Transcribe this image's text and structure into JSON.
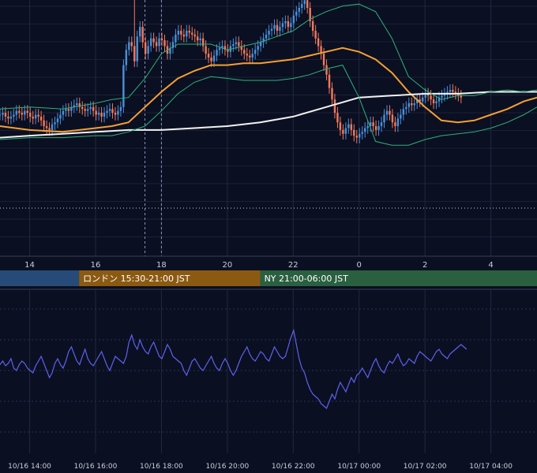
{
  "chart_data": [
    {
      "type": "candlestick",
      "panel": "price",
      "grid": true,
      "x_tick_labels": [
        "14",
        "16",
        "18",
        "20",
        "22",
        "0",
        "2",
        "4"
      ],
      "x_ticks_hours": [
        14,
        16,
        18,
        20,
        22,
        24,
        26,
        28
      ],
      "xlim_hours": [
        13.1,
        29.4
      ],
      "ylim": [
        0,
        100
      ],
      "vertical_markers_hours": [
        17.5,
        18.0
      ],
      "reference_line_level": 22,
      "series": [
        {
          "kind": "moving-average",
          "color": "#f5a033",
          "x": [
            13.1,
            14.0,
            15.0,
            16.0,
            16.5,
            17.0,
            17.5,
            18.0,
            18.5,
            19.0,
            19.5,
            20.0,
            20.5,
            21.0,
            21.5,
            22.0,
            22.5,
            23.0,
            23.5,
            24.0,
            24.5,
            25.0,
            25.5,
            26.0,
            26.5,
            27.0,
            27.5,
            28.0,
            28.5,
            29.0,
            29.4
          ],
          "y": [
            38,
            36,
            35,
            37,
            38,
            40,
            48,
            56,
            63,
            67,
            70,
            70,
            71,
            71,
            72,
            73,
            75,
            77,
            79,
            77,
            73,
            66,
            56,
            48,
            41,
            40,
            41,
            44,
            47,
            51,
            53
          ]
        },
        {
          "kind": "moving-average",
          "color": "#f2f2f2",
          "x": [
            13.1,
            14.0,
            15.0,
            16.0,
            17.0,
            18.0,
            19.0,
            20.0,
            21.0,
            22.0,
            23.0,
            24.0,
            25.0,
            26.0,
            27.0,
            28.0,
            29.0,
            29.4
          ],
          "y": [
            32,
            33,
            34,
            35,
            36,
            36,
            37,
            38,
            40,
            43,
            48,
            53,
            54,
            55,
            55,
            56,
            56,
            56
          ]
        },
        {
          "kind": "band-upper",
          "color": "#2db37a",
          "x": [
            13.1,
            14.0,
            15.0,
            16.0,
            16.5,
            17.0,
            17.5,
            18.0,
            18.5,
            19.0,
            19.5,
            20.0,
            20.5,
            21.0,
            21.5,
            22.0,
            22.5,
            23.0,
            23.5,
            24.0,
            24.5,
            25.0,
            25.5,
            26.0,
            26.5,
            27.0,
            27.5,
            28.0,
            28.5,
            29.0,
            29.4
          ],
          "y": [
            47,
            48,
            47,
            50,
            52,
            53,
            63,
            76,
            81,
            81,
            81,
            78,
            80,
            82,
            85,
            88,
            94,
            98,
            101,
            102,
            98,
            84,
            64,
            57,
            52,
            54,
            54,
            56,
            57,
            56,
            57
          ]
        },
        {
          "kind": "band-lower",
          "color": "#2db37a",
          "x": [
            13.1,
            14.0,
            15.0,
            16.0,
            16.5,
            17.0,
            17.5,
            18.0,
            18.5,
            19.0,
            19.5,
            20.0,
            20.5,
            21.0,
            21.5,
            22.0,
            22.5,
            23.0,
            23.5,
            24.0,
            24.5,
            25.0,
            25.5,
            26.0,
            26.5,
            27.0,
            27.5,
            28.0,
            28.5,
            29.0,
            29.4
          ],
          "y": [
            31,
            32,
            32,
            33,
            33,
            35,
            38,
            46,
            55,
            61,
            64,
            63,
            62,
            62,
            62,
            63,
            65,
            68,
            70,
            53,
            30,
            28,
            28,
            31,
            33,
            34,
            35,
            37,
            40,
            44,
            48
          ]
        },
        {
          "kind": "candles",
          "up_color": "#4a90d9",
          "down_color": "#f07a5c",
          "start_hour": 13.1,
          "step_hours": 0.0833,
          "close": [
            44,
            45,
            43,
            42,
            43,
            44,
            46,
            45,
            44,
            46,
            45,
            43,
            42,
            44,
            43,
            41,
            38,
            37,
            36,
            39,
            40,
            42,
            44,
            46,
            47,
            46,
            48,
            49,
            50,
            48,
            47,
            46,
            47,
            48,
            46,
            44,
            45,
            43,
            45,
            46,
            47,
            45,
            44,
            46,
            48,
            70,
            78,
            82,
            80,
            72,
            85,
            90,
            82,
            76,
            80,
            84,
            82,
            80,
            84,
            83,
            80,
            76,
            79,
            82,
            86,
            88,
            86,
            85,
            88,
            87,
            86,
            85,
            83,
            84,
            80,
            76,
            74,
            72,
            75,
            78,
            79,
            80,
            78,
            77,
            80,
            81,
            82,
            80,
            78,
            76,
            75,
            74,
            76,
            78,
            80,
            82,
            84,
            86,
            88,
            89,
            91,
            88,
            90,
            92,
            93,
            90,
            92,
            96,
            98,
            100,
            102,
            104,
            100,
            93,
            88,
            84,
            80,
            76,
            70,
            65,
            58,
            52,
            45,
            40,
            36,
            34,
            37,
            39,
            36,
            33,
            32,
            34,
            35,
            37,
            38,
            40,
            38,
            36,
            38,
            40,
            44,
            46,
            44,
            40,
            38,
            42,
            44,
            47,
            48,
            50,
            49,
            50,
            52,
            51,
            53,
            55,
            54,
            52,
            50,
            51,
            53,
            54,
            55,
            56,
            57,
            56,
            55,
            54,
            53
          ],
          "open": [
            44,
            44,
            45,
            43,
            42,
            43,
            44,
            46,
            45,
            44,
            46,
            45,
            43,
            42,
            44,
            43,
            41,
            38,
            37,
            36,
            39,
            40,
            42,
            44,
            46,
            47,
            46,
            48,
            49,
            50,
            48,
            47,
            46,
            47,
            48,
            46,
            44,
            45,
            43,
            45,
            46,
            47,
            45,
            44,
            46,
            48,
            70,
            78,
            82,
            80,
            72,
            85,
            90,
            82,
            76,
            80,
            84,
            82,
            80,
            84,
            83,
            80,
            76,
            79,
            82,
            86,
            88,
            86,
            85,
            88,
            87,
            86,
            85,
            83,
            84,
            80,
            76,
            74,
            72,
            75,
            78,
            79,
            80,
            78,
            77,
            80,
            81,
            82,
            80,
            78,
            76,
            75,
            74,
            76,
            78,
            80,
            82,
            84,
            86,
            88,
            89,
            91,
            88,
            90,
            92,
            93,
            90,
            92,
            96,
            98,
            100,
            102,
            104,
            100,
            93,
            88,
            84,
            80,
            76,
            70,
            65,
            58,
            52,
            45,
            40,
            36,
            34,
            37,
            39,
            36,
            33,
            32,
            34,
            35,
            37,
            38,
            40,
            38,
            36,
            38,
            40,
            44,
            46,
            44,
            40,
            38,
            42,
            44,
            47,
            48,
            50,
            49,
            50,
            52,
            51,
            53,
            55,
            54,
            52,
            50,
            51,
            53,
            54,
            55,
            56,
            57,
            56,
            55,
            54
          ],
          "high_extra": 3,
          "spikes": [
            {
              "index": 49,
              "high": 120
            },
            {
              "index": 111,
              "high": 108
            }
          ]
        }
      ]
    },
    {
      "type": "line",
      "panel": "oscillator",
      "grid": true,
      "x_tick_labels": [
        "10/16 14:00",
        "10/16 16:00",
        "10/16 18:00",
        "10/16 20:00",
        "10/16 22:00",
        "10/17 00:00",
        "10/17 02:00",
        "10/17 04:00"
      ],
      "x_ticks_hours": [
        14,
        16,
        18,
        20,
        22,
        24,
        26,
        28
      ],
      "xlim_hours": [
        13.1,
        29.4
      ],
      "ylim": [
        0,
        100
      ],
      "series": [
        {
          "kind": "oscillator",
          "color": "#5b63ee",
          "start_hour": 13.1,
          "step_hours": 0.0833,
          "y": [
            55,
            58,
            54,
            56,
            60,
            52,
            50,
            55,
            58,
            56,
            52,
            50,
            48,
            54,
            58,
            62,
            56,
            50,
            44,
            48,
            56,
            60,
            55,
            52,
            58,
            66,
            70,
            64,
            58,
            55,
            62,
            68,
            60,
            56,
            54,
            58,
            62,
            66,
            60,
            54,
            50,
            56,
            62,
            60,
            58,
            56,
            62,
            74,
            80,
            72,
            68,
            76,
            70,
            66,
            64,
            70,
            74,
            68,
            62,
            60,
            66,
            72,
            68,
            62,
            60,
            58,
            56,
            50,
            46,
            52,
            58,
            60,
            56,
            52,
            50,
            54,
            58,
            62,
            56,
            52,
            50,
            56,
            60,
            56,
            50,
            46,
            50,
            56,
            62,
            66,
            70,
            64,
            60,
            58,
            62,
            66,
            64,
            60,
            58,
            64,
            70,
            66,
            62,
            60,
            62,
            70,
            78,
            84,
            72,
            60,
            52,
            48,
            40,
            34,
            30,
            28,
            26,
            22,
            20,
            18,
            24,
            30,
            26,
            34,
            40,
            36,
            32,
            38,
            44,
            40,
            46,
            48,
            52,
            48,
            44,
            50,
            56,
            60,
            54,
            50,
            48,
            54,
            58,
            56,
            60,
            64,
            58,
            54,
            56,
            60,
            58,
            56,
            62,
            66,
            64,
            62,
            60,
            58,
            62,
            66,
            68,
            64,
            62,
            60,
            64,
            66,
            68,
            70,
            72,
            70,
            68
          ]
        }
      ]
    }
  ],
  "sessions": [
    {
      "label": "",
      "color": "#274b78",
      "start_hour": 13.1,
      "end_hour": 15.5
    },
    {
      "label": "ロンドン 15:30-21:00 JST",
      "color": "#8b5a12",
      "start_hour": 15.5,
      "end_hour": 21.0
    },
    {
      "label": "NY 21:00-06:00 JST",
      "color": "#2a6040",
      "start_hour": 21.0,
      "end_hour": 29.4
    }
  ]
}
